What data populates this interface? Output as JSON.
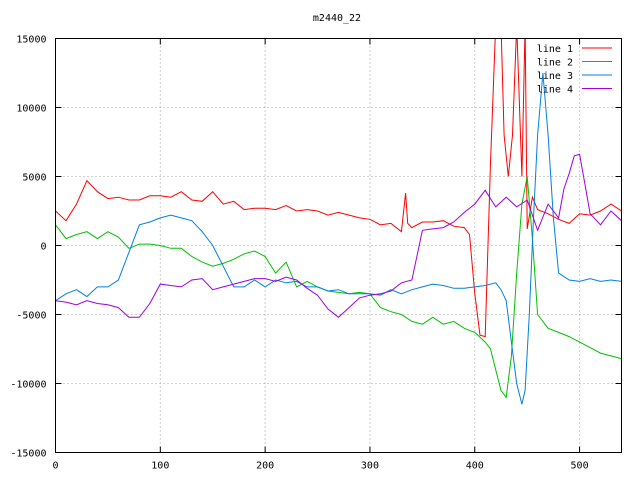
{
  "chart_data": {
    "type": "line",
    "title": "m2440_22",
    "xlabel": "",
    "ylabel": "",
    "xlim": [
      0,
      540
    ],
    "ylim": [
      -15000,
      15000
    ],
    "x_ticks": [
      0,
      100,
      200,
      300,
      400,
      500
    ],
    "y_ticks": [
      -15000,
      -10000,
      -5000,
      0,
      5000,
      10000,
      15000
    ],
    "grid": true,
    "legend_position": "top-right",
    "series": [
      {
        "name": "line 1",
        "color": "#ff0000",
        "x": [
          0,
          10,
          20,
          30,
          40,
          50,
          60,
          70,
          80,
          90,
          100,
          110,
          120,
          130,
          140,
          150,
          160,
          170,
          180,
          190,
          200,
          210,
          220,
          230,
          240,
          250,
          260,
          270,
          280,
          290,
          300,
          310,
          320,
          330,
          334,
          336,
          340,
          350,
          360,
          370,
          380,
          390,
          395,
          400,
          405,
          410,
          415,
          420,
          425,
          428,
          432,
          436,
          440,
          445,
          448,
          450,
          455,
          460,
          470,
          480,
          490,
          500,
          510,
          520,
          530,
          540
        ],
        "y": [
          2500,
          1800,
          3000,
          4700,
          3900,
          3400,
          3500,
          3300,
          3300,
          3600,
          3600,
          3500,
          3900,
          3300,
          3200,
          3900,
          3000,
          3200,
          2600,
          2700,
          2700,
          2600,
          2900,
          2500,
          2600,
          2500,
          2200,
          2400,
          2200,
          2000,
          1900,
          1500,
          1600,
          1000,
          3800,
          1600,
          1300,
          1700,
          1700,
          1800,
          1400,
          1300,
          800,
          -3500,
          -6500,
          -6600,
          6000,
          16000,
          16000,
          8000,
          5000,
          8000,
          16000,
          5000,
          16000,
          1200,
          3500,
          2600,
          2300,
          1900,
          1600,
          2300,
          2200,
          2500,
          3000,
          2500
        ]
      },
      {
        "name": "line 2",
        "color": "#00c000",
        "x": [
          0,
          10,
          20,
          30,
          40,
          50,
          60,
          70,
          80,
          90,
          100,
          110,
          120,
          130,
          140,
          150,
          160,
          170,
          180,
          190,
          200,
          210,
          220,
          230,
          240,
          250,
          260,
          270,
          280,
          290,
          300,
          310,
          320,
          330,
          340,
          350,
          360,
          370,
          380,
          390,
          400,
          410,
          415,
          420,
          425,
          430,
          435,
          440,
          445,
          450,
          455,
          460,
          470,
          480,
          490,
          500,
          510,
          520,
          530,
          540
        ],
        "y": [
          1500,
          500,
          800,
          1000,
          500,
          1000,
          600,
          -200,
          100,
          100,
          0,
          -200,
          -200,
          -800,
          -1200,
          -1500,
          -1300,
          -1000,
          -600,
          -400,
          -800,
          -2000,
          -1200,
          -3000,
          -2600,
          -3000,
          -3300,
          -3400,
          -3500,
          -3400,
          -3500,
          -4500,
          -4800,
          -5000,
          -5500,
          -5700,
          -5200,
          -5700,
          -5500,
          -6000,
          -6300,
          -7000,
          -7500,
          -9000,
          -10500,
          -11000,
          -8000,
          -2000,
          3000,
          5000,
          500,
          -5000,
          -6000,
          -6300,
          -6600,
          -7000,
          -7400,
          -7800,
          -8000,
          -8200
        ]
      },
      {
        "name": "line 3",
        "color": "#0080e0",
        "x": [
          0,
          10,
          20,
          30,
          40,
          50,
          60,
          70,
          80,
          90,
          100,
          110,
          120,
          130,
          140,
          150,
          160,
          170,
          180,
          190,
          200,
          210,
          220,
          230,
          240,
          250,
          260,
          270,
          280,
          290,
          300,
          310,
          320,
          330,
          340,
          350,
          360,
          370,
          380,
          390,
          400,
          410,
          420,
          425,
          430,
          435,
          440,
          445,
          448,
          452,
          456,
          460,
          465,
          470,
          475,
          480,
          490,
          500,
          510,
          520,
          530,
          540
        ],
        "y": [
          -4000,
          -3500,
          -3200,
          -3700,
          -3000,
          -3000,
          -2500,
          -500,
          1500,
          1700,
          2000,
          2200,
          2000,
          1800,
          1000,
          0,
          -1500,
          -3000,
          -3000,
          -2500,
          -3000,
          -2500,
          -2700,
          -2600,
          -3000,
          -3000,
          -3300,
          -3200,
          -3500,
          -3500,
          -3500,
          -3600,
          -3200,
          -3500,
          -3200,
          -3000,
          -2800,
          -2900,
          -3100,
          -3100,
          -3000,
          -2900,
          -2700,
          -3200,
          -4000,
          -7000,
          -10000,
          -11500,
          -10500,
          -5000,
          2000,
          8000,
          12500,
          8000,
          2000,
          -2000,
          -2500,
          -2600,
          -2400,
          -2600,
          -2500,
          -2600
        ]
      },
      {
        "name": "line 4",
        "color": "#a000e0",
        "x": [
          0,
          10,
          20,
          30,
          40,
          50,
          60,
          70,
          80,
          90,
          100,
          110,
          120,
          130,
          140,
          150,
          160,
          170,
          180,
          190,
          200,
          210,
          220,
          230,
          240,
          250,
          260,
          270,
          280,
          290,
          300,
          310,
          320,
          330,
          340,
          350,
          360,
          370,
          380,
          390,
          400,
          410,
          420,
          430,
          440,
          450,
          460,
          470,
          480,
          485,
          490,
          495,
          500,
          505,
          510,
          520,
          530,
          540
        ],
        "y": [
          -4000,
          -4100,
          -4300,
          -4000,
          -4200,
          -4300,
          -4500,
          -5200,
          -5200,
          -4200,
          -2800,
          -2900,
          -3000,
          -2500,
          -2400,
          -3200,
          -3000,
          -2800,
          -2600,
          -2400,
          -2400,
          -2600,
          -2300,
          -2500,
          -3100,
          -3600,
          -4600,
          -5200,
          -4500,
          -3800,
          -3600,
          -3500,
          -3300,
          -2700,
          -2500,
          1100,
          1200,
          1300,
          1700,
          2400,
          3000,
          4000,
          2800,
          3500,
          2800,
          3300,
          1100,
          3000,
          2000,
          4100,
          5200,
          6500,
          6600,
          4500,
          2300,
          1500,
          2500,
          1800
        ]
      }
    ]
  }
}
